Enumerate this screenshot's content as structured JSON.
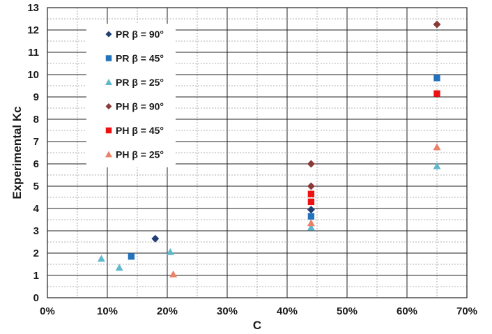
{
  "chart_data": {
    "type": "scatter",
    "title": "",
    "xlabel": "C",
    "ylabel": "Experimental Kc",
    "xlim": [
      0,
      0.7
    ],
    "ylim": [
      0,
      13
    ],
    "x_ticks": [
      "0%",
      "10%",
      "20%",
      "30%",
      "40%",
      "50%",
      "60%",
      "70%"
    ],
    "y_ticks": [
      "0",
      "1",
      "2",
      "3",
      "4",
      "5",
      "6",
      "7",
      "8",
      "9",
      "10",
      "11",
      "12",
      "13"
    ],
    "grid": "major solid, minor dashed",
    "legend_position": "top-left",
    "series": [
      {
        "name": "PR β = 90°",
        "marker": "diamond",
        "color": "#1f3f73",
        "points": [
          [
            0.18,
            2.65
          ],
          [
            0.44,
            3.95
          ]
        ]
      },
      {
        "name": "PR β = 45°",
        "marker": "square",
        "color": "#2473bd",
        "points": [
          [
            0.14,
            1.85
          ],
          [
            0.44,
            3.65
          ],
          [
            0.65,
            9.85
          ]
        ]
      },
      {
        "name": "PR β = 25°",
        "marker": "triangle",
        "color": "#5fb8cc",
        "points": [
          [
            0.09,
            1.75
          ],
          [
            0.12,
            1.35
          ],
          [
            0.205,
            2.05
          ],
          [
            0.44,
            3.15
          ],
          [
            0.65,
            5.9
          ]
        ]
      },
      {
        "name": "PH β = 90°",
        "marker": "diamond",
        "color": "#8b3a3a",
        "points": [
          [
            0.44,
            6.0
          ],
          [
            0.44,
            5.0
          ],
          [
            0.65,
            12.25
          ]
        ]
      },
      {
        "name": "PH β = 45°",
        "marker": "square",
        "color": "#ee1111",
        "points": [
          [
            0.44,
            4.65
          ],
          [
            0.44,
            4.3
          ],
          [
            0.65,
            9.15
          ]
        ]
      },
      {
        "name": "PH β = 25°",
        "marker": "triangle",
        "color": "#e8836a",
        "points": [
          [
            0.21,
            1.05
          ],
          [
            0.44,
            3.35
          ],
          [
            0.65,
            6.75
          ]
        ]
      }
    ]
  }
}
